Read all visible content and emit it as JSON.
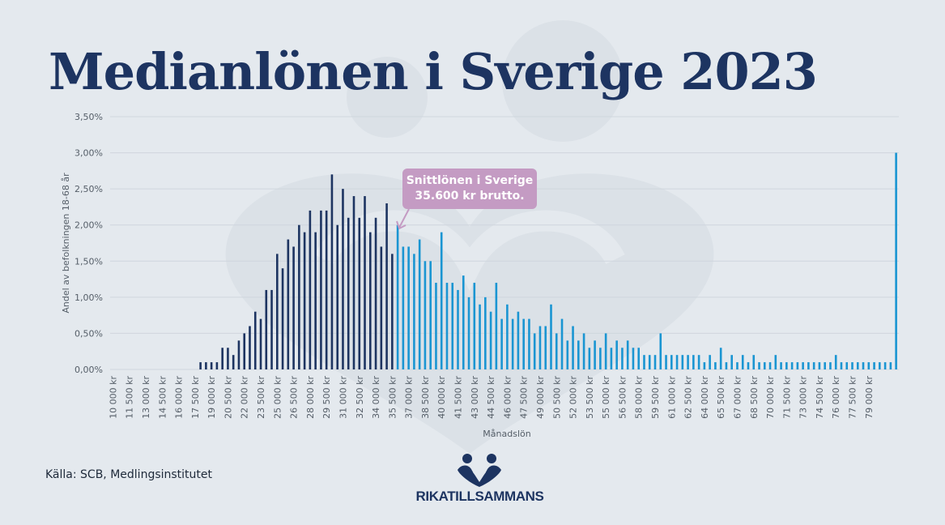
{
  "title": "Medianlönen i Sverige 2023",
  "source": "Källa: SCB, Medlingsinstitutet",
  "brand": "RIKATILLSAMMANS",
  "annotation": {
    "line1": "Snittlönen i Sverige",
    "line2": "35.600 kr brutto."
  },
  "colors": {
    "below_average": "#1d3461",
    "above_average": "#1a95d2",
    "annotation": "#c49bc3",
    "background": "#e4e9ee"
  },
  "chart_data": {
    "type": "bar",
    "xlabel": "Månadslön",
    "ylabel": "Andel av befolkningen 18-68 år",
    "ylim": [
      0,
      3.5
    ],
    "y_ticks": [
      "0,00%",
      "0,50%",
      "1,00%",
      "1,50%",
      "2,00%",
      "2,50%",
      "3,00%",
      "3,50%"
    ],
    "x_start": 10000,
    "x_step": 500,
    "x_tick_labels": [
      "10 000 kr",
      "11 500 kr",
      "13 000 kr",
      "14 500 kr",
      "16 000 kr",
      "17 500 kr",
      "19 000 kr",
      "20 500 kr",
      "22 000 kr",
      "23 500 kr",
      "25 000 kr",
      "26 500 kr",
      "28 000 kr",
      "29 500 kr",
      "31 000 kr",
      "32 500 kr",
      "34 000 kr",
      "35 500 kr",
      "37 000 kr",
      "38 500 kr",
      "40 000 kr",
      "41 500 kr",
      "43 000 kr",
      "44 500 kr",
      "46 000 kr",
      "47 500 kr",
      "49 000 kr",
      "50 500 kr",
      "52 000 kr",
      "53 500 kr",
      "55 000 kr",
      "56 500 kr",
      "58 000 kr",
      "59 500 kr",
      "61 000 kr",
      "62 500 kr",
      "64 000 kr",
      "65 500 kr",
      "67 000 kr",
      "68 500 kr",
      "70 000 kr",
      "71 500 kr",
      "73 000 kr",
      "74 500 kr",
      "76 000 kr",
      "77 500 kr",
      "79 000 kr"
    ],
    "average_value": 35600,
    "grid": true,
    "series": [
      {
        "values": [
          0,
          0,
          0,
          0,
          0,
          0,
          0,
          0,
          0,
          0,
          0,
          0,
          0,
          0,
          0,
          0,
          0.1,
          0.1,
          0.1,
          0.1,
          0.3,
          0.3,
          0.2,
          0.4,
          0.5,
          0.6,
          0.8,
          0.7,
          1.1,
          1.1,
          1.6,
          1.4,
          1.8,
          1.7,
          2.0,
          1.9,
          2.2,
          1.9,
          2.2,
          2.2,
          2.7,
          2.0,
          2.5,
          2.1,
          2.4,
          2.1,
          2.4,
          1.9,
          2.1,
          1.7,
          2.3,
          1.6,
          2.0,
          1.7,
          1.7,
          1.6,
          1.8,
          1.5,
          1.5,
          1.2,
          1.9,
          1.2,
          1.2,
          1.1,
          1.3,
          1.0,
          1.2,
          0.9,
          1.0,
          0.8,
          1.2,
          0.7,
          0.9,
          0.7,
          0.8,
          0.7,
          0.7,
          0.5,
          0.6,
          0.6,
          0.9,
          0.5,
          0.7,
          0.4,
          0.6,
          0.4,
          0.5,
          0.3,
          0.4,
          0.3,
          0.5,
          0.3,
          0.4,
          0.3,
          0.4,
          0.3,
          0.3,
          0.2,
          0.2,
          0.2,
          0.5,
          0.2,
          0.2,
          0.2,
          0.2,
          0.2,
          0.2,
          0.2,
          0.1,
          0.2,
          0.1,
          0.3,
          0.1,
          0.2,
          0.1,
          0.2,
          0.1,
          0.2,
          0.1,
          0.1,
          0.1,
          0.2,
          0.1,
          0.1,
          0.1,
          0.1,
          0.1,
          0.1,
          0.1,
          0.1,
          0.1,
          0.1,
          0.2,
          0.1,
          0.1,
          0.1,
          0.1,
          0.1,
          0.1,
          0.1,
          0.1,
          0.1,
          0.1,
          3.0
        ]
      }
    ]
  }
}
